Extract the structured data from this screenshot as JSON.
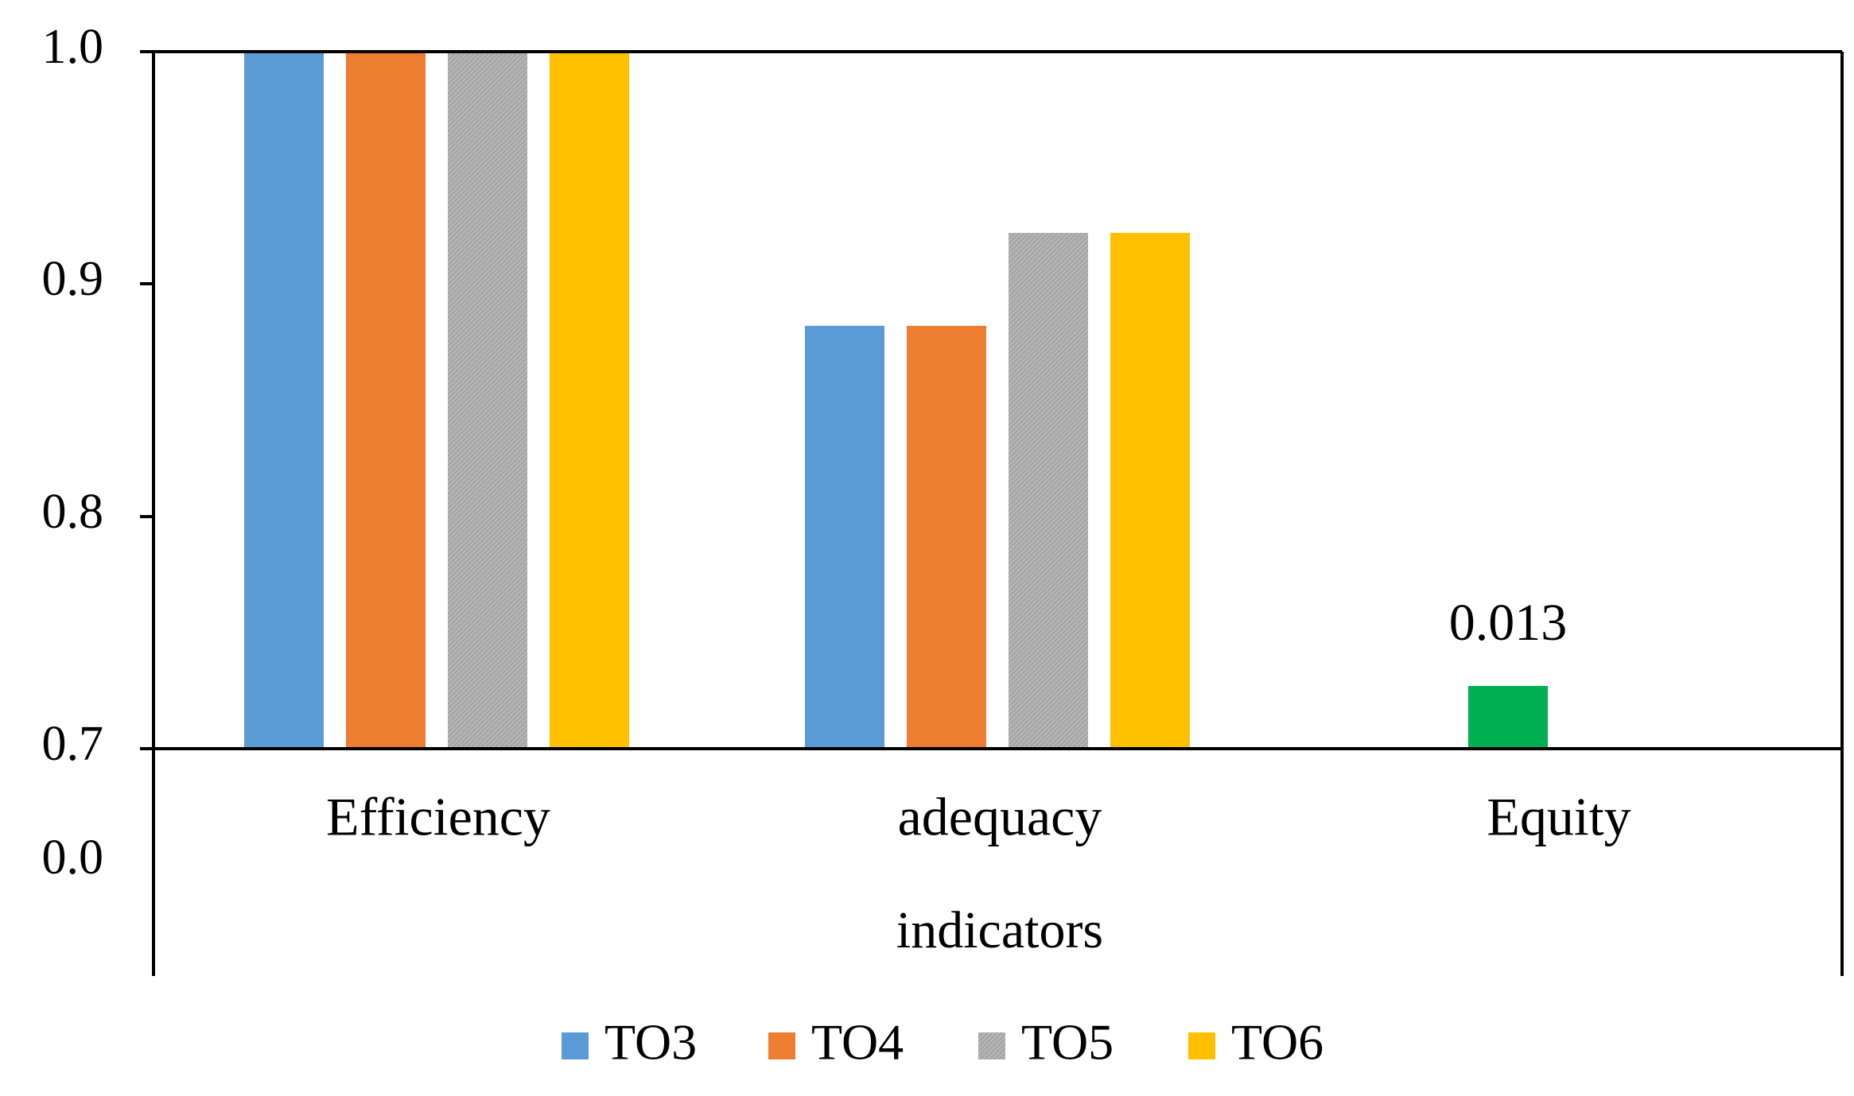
{
  "chart_data": {
    "type": "bar",
    "title": "",
    "xlabel": "indicators",
    "ylabel": "",
    "categories": [
      "Efficiency",
      "adequacy",
      "Equity"
    ],
    "y_ticks": [
      "1.0",
      "0.9",
      "0.8",
      "0.7"
    ],
    "y_break_label": "0.0",
    "ylim": [
      0.7,
      1.0
    ],
    "series": [
      {
        "name": "TO3",
        "color": "#5B9BD5",
        "values": [
          1.0,
          0.882,
          null
        ]
      },
      {
        "name": "TO4",
        "color": "#ED7D31",
        "values": [
          1.0,
          0.882,
          null
        ]
      },
      {
        "name": "TO5",
        "color": "#A5A5A5",
        "values": [
          1.0,
          0.922,
          null
        ]
      },
      {
        "name": "TO6",
        "color": "#FFC000",
        "values": [
          1.0,
          0.922,
          null
        ]
      }
    ],
    "extra_bar": {
      "category": "Equity",
      "color": "#00B050",
      "value": 0.013,
      "drawn_value": 0.727,
      "label": "0.013"
    },
    "legend": {
      "position": "bottom",
      "entries": [
        "TO3",
        "TO4",
        "TO5",
        "TO6"
      ]
    },
    "grid": false
  }
}
